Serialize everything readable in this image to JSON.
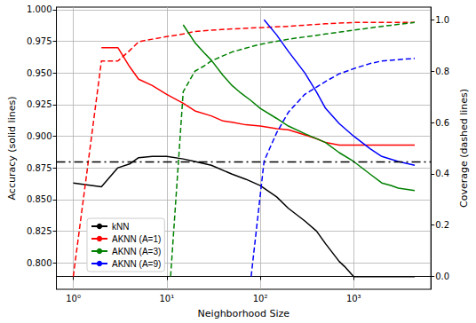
{
  "chart_data": {
    "type": "line",
    "xlabel": "Neighborhood Size",
    "ylabel": "Accuracy (solid lines)",
    "y2label": "Coverage (dashed lines)",
    "log": "x",
    "grid": true,
    "legend": "lower left",
    "xlim": [
      0.66,
      6700
    ],
    "xticks": [
      {
        "value": 1,
        "label": "10⁰"
      },
      {
        "value": 10,
        "label": "10¹"
      },
      {
        "value": 100,
        "label": "10²"
      },
      {
        "value": 1000,
        "label": "10³"
      }
    ],
    "ylim": [
      0.779,
      1.002
    ],
    "yticks": [
      {
        "value": 0.8,
        "label": "0.800"
      },
      0.825,
      {
        "value": 0.85,
        "label": "0.850"
      },
      0.875,
      {
        "value": 0.9,
        "label": "0.900"
      },
      0.925,
      {
        "value": 0.95,
        "label": "0.950"
      },
      0.975,
      {
        "value": 1,
        "label": "1.000"
      }
    ],
    "y2lim": [
      -0.05,
      1.05
    ],
    "y2ticks": [
      {
        "value": 0,
        "label": "0.0"
      },
      0.2,
      0.4,
      0.6,
      0.8,
      {
        "value": 1,
        "label": "1.0"
      }
    ],
    "hline": {
      "value": 0.884,
      "color": "#000000",
      "line_style": "dashdot"
    },
    "series": [
      {
        "name": "kNN",
        "color": "#000000",
        "line_style": "solid",
        "x": [
          1,
          2,
          3,
          4,
          5,
          7,
          10,
          15,
          20,
          30,
          50,
          70,
          100,
          150,
          200,
          300,
          400,
          500,
          700,
          800,
          1000,
          1500,
          2000,
          3000,
          4500
        ],
        "values": [
          0.863,
          0.86,
          0.875,
          0.878,
          0.883,
          0.884,
          0.884,
          0.882,
          0.88,
          0.877,
          0.87,
          0.866,
          0.861,
          0.852,
          0.843,
          0.833,
          0.825,
          0.815,
          0.801,
          0.797,
          0.789,
          0.789,
          0.789,
          0.789,
          0.789
        ]
      },
      {
        "name": "AKNN (A=1)",
        "color": "#ff0000",
        "line_style": "solid",
        "x": [
          2,
          3,
          4,
          5,
          7,
          10,
          15,
          20,
          30,
          40,
          50,
          70,
          100,
          150,
          200,
          300,
          400,
          500,
          700,
          1000,
          2000,
          4500
        ],
        "values": [
          0.97,
          0.97,
          0.955,
          0.945,
          0.94,
          0.933,
          0.926,
          0.92,
          0.916,
          0.912,
          0.911,
          0.909,
          0.908,
          0.906,
          0.905,
          0.901,
          0.898,
          0.895,
          0.893,
          0.893,
          0.893,
          0.893
        ],
        "coverage": {
          "axis": "y2",
          "line_style": "dashed",
          "x": [
            1,
            2,
            3,
            4,
            5,
            7,
            10,
            15,
            20,
            30,
            50,
            100,
            200,
            500,
            1000,
            4500
          ],
          "values": [
            0.0,
            0.84,
            0.84,
            0.88,
            0.915,
            0.925,
            0.935,
            0.945,
            0.955,
            0.96,
            0.965,
            0.97,
            0.975,
            0.985,
            0.99,
            0.99
          ]
        }
      },
      {
        "name": "AKNN (A=3)",
        "color": "#008000",
        "line_style": "solid",
        "x": [
          15,
          20,
          25,
          30,
          40,
          50,
          60,
          80,
          100,
          150,
          200,
          300,
          500,
          700,
          1000,
          1500,
          2000,
          2500,
          3000,
          4500
        ],
        "values": [
          0.988,
          0.974,
          0.966,
          0.96,
          0.948,
          0.94,
          0.935,
          0.928,
          0.922,
          0.914,
          0.908,
          0.902,
          0.895,
          0.887,
          0.88,
          0.87,
          0.863,
          0.861,
          0.859,
          0.857
        ],
        "coverage": {
          "axis": "y2",
          "line_style": "dashed",
          "x": [
            11,
            15,
            20,
            25,
            30,
            40,
            50,
            70,
            100,
            200,
            500,
            1000,
            2000,
            4500
          ],
          "values": [
            0.0,
            0.72,
            0.8,
            0.82,
            0.84,
            0.86,
            0.875,
            0.89,
            0.905,
            0.925,
            0.945,
            0.96,
            0.975,
            0.99
          ]
        }
      },
      {
        "name": "AKNN (A=9)",
        "color": "#0000ff",
        "line_style": "solid",
        "x": [
          110,
          150,
          200,
          300,
          400,
          500,
          700,
          1000,
          1500,
          2000,
          3000,
          4500
        ],
        "values": [
          0.992,
          0.98,
          0.967,
          0.95,
          0.935,
          0.922,
          0.91,
          0.9,
          0.89,
          0.884,
          0.88,
          0.877
        ],
        "coverage": {
          "axis": "y2",
          "line_style": "dashed",
          "x": [
            80,
            110,
            150,
            200,
            300,
            500,
            700,
            1000,
            1500,
            2000,
            3000,
            4500
          ],
          "values": [
            0.0,
            0.45,
            0.56,
            0.64,
            0.71,
            0.76,
            0.79,
            0.81,
            0.83,
            0.84,
            0.845,
            0.85
          ]
        }
      }
    ]
  }
}
